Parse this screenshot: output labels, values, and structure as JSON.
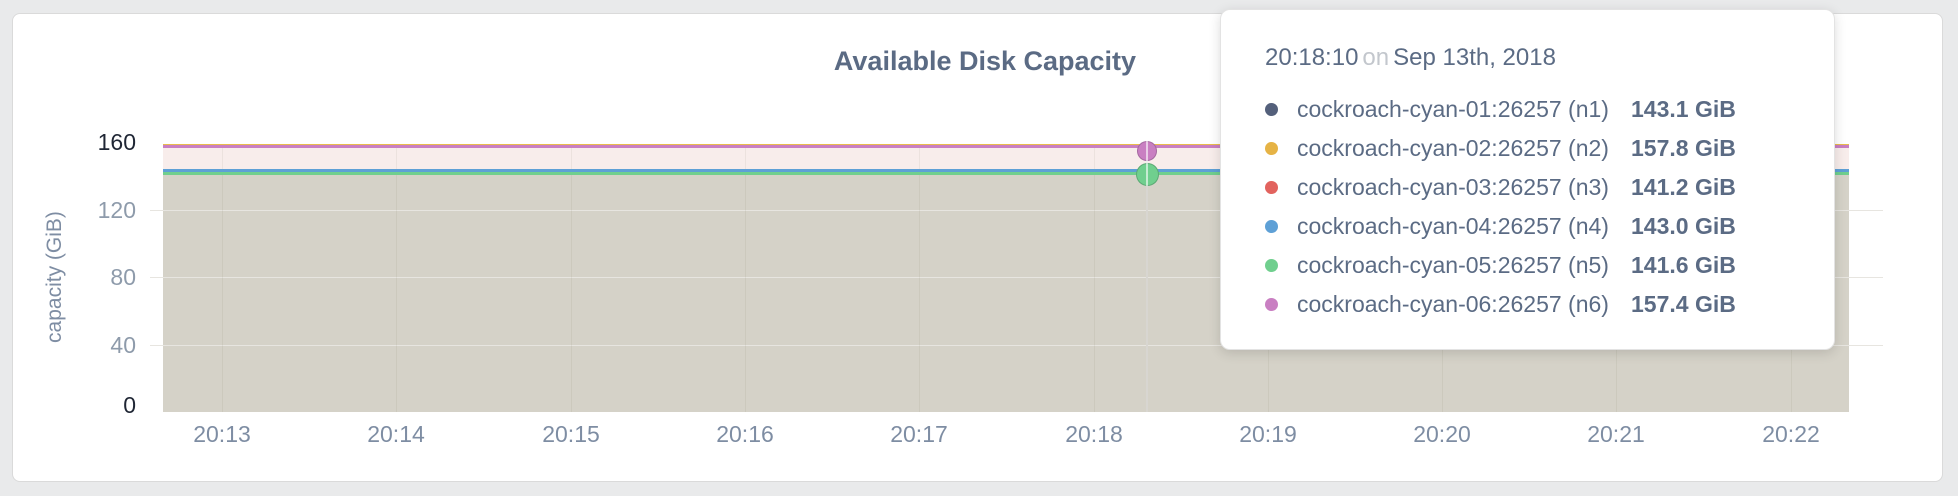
{
  "card": {
    "title": "Available Disk Capacity"
  },
  "tooltip": {
    "time": "20:18:10",
    "connector": "on",
    "date": "Sep 13th, 2018",
    "rows": [
      {
        "name": "cockroach-cyan-01:26257 (n1)",
        "value": "143.1 GiB",
        "color": "#54607b"
      },
      {
        "name": "cockroach-cyan-02:26257 (n2)",
        "value": "157.8 GiB",
        "color": "#e6b345"
      },
      {
        "name": "cockroach-cyan-03:26257 (n3)",
        "value": "141.2 GiB",
        "color": "#e2635e"
      },
      {
        "name": "cockroach-cyan-04:26257 (n4)",
        "value": "143.0 GiB",
        "color": "#5ea0d6"
      },
      {
        "name": "cockroach-cyan-05:26257 (n5)",
        "value": "141.6 GiB",
        "color": "#70cf8e"
      },
      {
        "name": "cockroach-cyan-06:26257 (n6)",
        "value": "157.4 GiB",
        "color": "#c97fc2"
      }
    ]
  },
  "chart_data": {
    "type": "area",
    "title": "Available Disk Capacity",
    "xlabel": "",
    "ylabel": "capacity (GiB)",
    "x_ticks": [
      "20:13",
      "20:14",
      "20:15",
      "20:16",
      "20:17",
      "20:18",
      "20:19",
      "20:20",
      "20:21",
      "20:22"
    ],
    "y_ticks": [
      0,
      40,
      80,
      120,
      160
    ],
    "ylim": [
      0,
      160
    ],
    "grid": true,
    "legend_position": "none",
    "hover": {
      "time": "20:18:10",
      "date": "Sep 13th, 2018",
      "between_ticks": "20:18 and 20:19"
    },
    "series": [
      {
        "name": "cockroach-cyan-01:26257 (n1)",
        "node": "n1",
        "value_gib": 143.1,
        "color": "#54607b",
        "marker": false
      },
      {
        "name": "cockroach-cyan-02:26257 (n2)",
        "node": "n2",
        "value_gib": 157.8,
        "color": "#e9bb4d",
        "marker": false
      },
      {
        "name": "cockroach-cyan-03:26257 (n3)",
        "node": "n3",
        "value_gib": 141.2,
        "color": "#e2635e",
        "marker": false
      },
      {
        "name": "cockroach-cyan-04:26257 (n4)",
        "node": "n4",
        "value_gib": 143.0,
        "color": "#5ea0d6",
        "marker": false
      },
      {
        "name": "cockroach-cyan-05:26257 (n5)",
        "node": "n5",
        "value_gib": 141.6,
        "color": "#70cf8e",
        "marker": true
      },
      {
        "name": "cockroach-cyan-06:26257 (n6)",
        "node": "n6",
        "value_gib": 157.4,
        "color": "#c97fc2",
        "marker": true
      }
    ],
    "colors": {
      "band_fill": "#f8edeb",
      "area_fill": "#d5d2c8",
      "gridline": "#e7e5e0",
      "hover_line": "#d8d6d1",
      "title_text": "#5b6b84",
      "tick_text": "#8e9bab",
      "tick_text_extreme": "#1f2634"
    }
  }
}
